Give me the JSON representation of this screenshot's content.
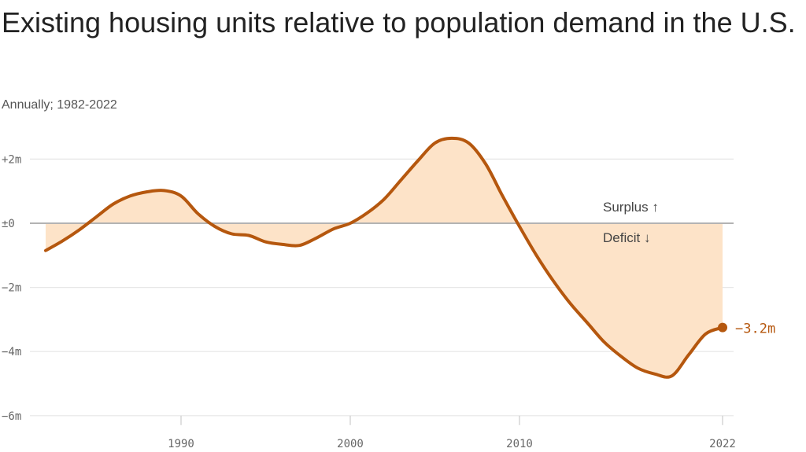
{
  "title": "Existing housing units relative to population demand in the U.S.",
  "subtitle": "Annually; 1982-2022",
  "colors": {
    "line": "#b5570e",
    "fill": "#fde3c8",
    "grid": "#e6e6e6",
    "zero": "#b3b3b3"
  },
  "annotations": {
    "surplus": "Surplus ↑",
    "deficit": "Deficit ↓"
  },
  "chart_data": {
    "type": "area",
    "title": "Existing housing units relative to population demand in the U.S.",
    "subtitle": "Annually; 1982-2022",
    "xlim": [
      1982,
      2022
    ],
    "ylim": [
      -6,
      2.5
    ],
    "x_ticks": [
      {
        "value": 1990,
        "label": "1990"
      },
      {
        "value": 2000,
        "label": "2000"
      },
      {
        "value": 2010,
        "label": "2010"
      },
      {
        "value": 2022,
        "label": "2022"
      }
    ],
    "y_ticks": [
      {
        "value": 2,
        "label": "+2m"
      },
      {
        "value": 0,
        "label": "±0"
      },
      {
        "value": -2,
        "label": "−2m"
      },
      {
        "value": -4,
        "label": "−4m"
      },
      {
        "value": -6,
        "label": "−6m"
      }
    ],
    "grid": true,
    "series": [
      {
        "x": [
          1982,
          1983,
          1984,
          1985,
          1986,
          1987,
          1988,
          1989,
          1990,
          1991,
          1992,
          1993,
          1994,
          1995,
          1996,
          1997,
          1998,
          1999,
          2000,
          2001,
          2002,
          2003,
          2004,
          2005,
          2006,
          2007,
          2008,
          2009,
          2010,
          2011,
          2012,
          2013,
          2014,
          2015,
          2016,
          2017,
          2018,
          2019,
          2020,
          2021,
          2022
        ],
        "values": [
          -0.85,
          -0.55,
          -0.2,
          0.2,
          0.6,
          0.85,
          0.98,
          1.02,
          0.85,
          0.3,
          -0.1,
          -0.33,
          -0.38,
          -0.58,
          -0.66,
          -0.69,
          -0.46,
          -0.18,
          0.0,
          0.32,
          0.75,
          1.35,
          1.95,
          2.5,
          2.65,
          2.5,
          1.85,
          0.85,
          -0.1,
          -1.0,
          -1.8,
          -2.5,
          -3.1,
          -3.7,
          -4.15,
          -4.52,
          -4.7,
          -4.76,
          -4.1,
          -3.45,
          -3.25
        ]
      }
    ],
    "end_label": "−3.2m"
  }
}
